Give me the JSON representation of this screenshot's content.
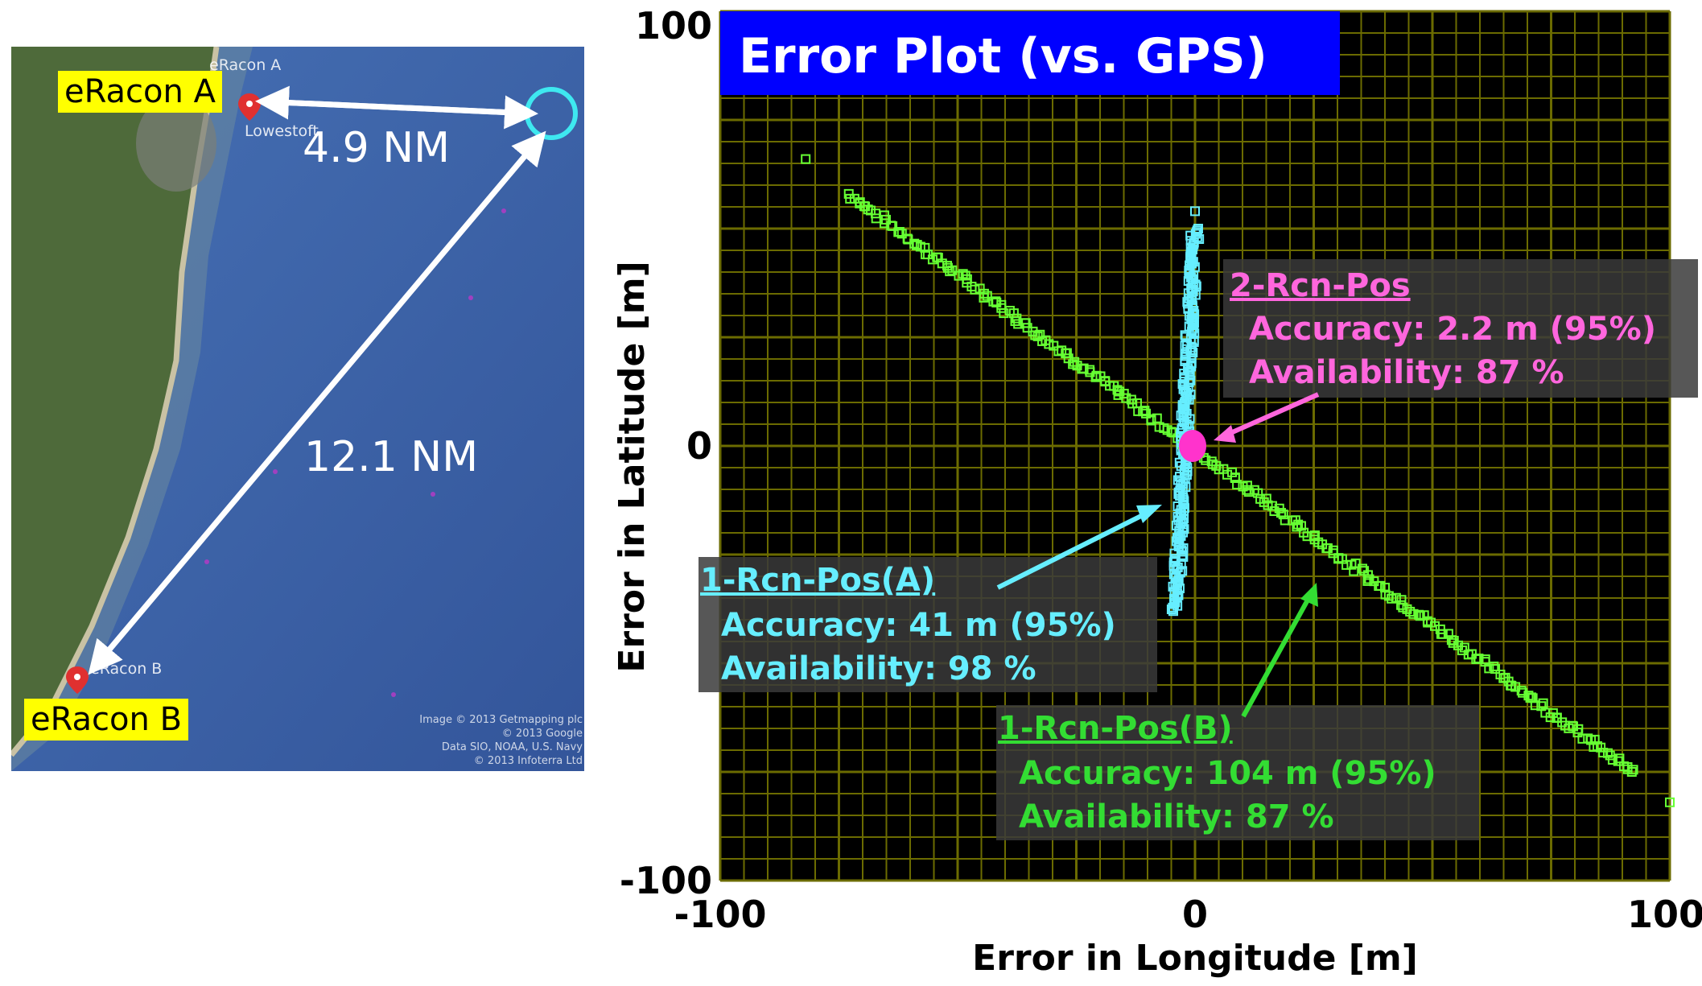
{
  "map": {
    "markers": [
      {
        "name": "eRacon A",
        "town": "Lowestoft"
      },
      {
        "name": "eRacon B"
      }
    ],
    "distances": [
      "4.9 NM",
      "12.1 NM"
    ],
    "credits": [
      "Image © 2013 Getmapping plc",
      "© 2013 Google",
      "Data SIO, NOAA, U.S. Navy",
      "© 2013 Infoterra Ltd"
    ],
    "colors": {
      "sea": "#3a5fa8",
      "land": "#4e6a3a",
      "highlight": "#3ee8f0",
      "arrow": "#ffffff",
      "label_bg": "#ffff00"
    }
  },
  "chart_data": {
    "type": "scatter",
    "title": "Error Plot (vs. GPS)",
    "xlabel": "Error in Longitude [m]",
    "ylabel": "Error in Latitude [m]",
    "xlim": [
      -100,
      100
    ],
    "ylim": [
      -100,
      100
    ],
    "x_ticks": [
      "-100",
      "0",
      "100"
    ],
    "y_ticks": [
      "100",
      "0",
      "-100"
    ],
    "grid": true,
    "colors": {
      "background": "#000000",
      "grid": "#6b6b00",
      "title_bg": "#0000ff"
    },
    "series": [
      {
        "name": "1-Rcn-Pos(B)",
        "color": "#66ff33",
        "marker": "square",
        "trend": {
          "x": [
            -73,
            92
          ],
          "y": [
            58,
            -75
          ]
        },
        "outliers": [
          [
            -82,
            66
          ],
          [
            92,
            -75
          ],
          [
            100,
            -82
          ]
        ],
        "annotation": {
          "title": "1-Rcn-Pos(B)",
          "lines": [
            "Accuracy:  104 m (95%)",
            "Availability:  87 %"
          ]
        }
      },
      {
        "name": "1-Rcn-Pos(A)",
        "color": "#66eeff",
        "marker": "square",
        "trend": {
          "x": [
            0,
            -4
          ],
          "y": [
            50,
            -38
          ]
        },
        "outliers": [
          [
            0,
            54
          ]
        ],
        "annotation": {
          "title": "1-Rcn-Pos(A)",
          "lines": [
            "Accuracy:  41 m (95%)",
            "Availability:  98 %"
          ]
        }
      },
      {
        "name": "2-Rcn-Pos",
        "color": "#ff33cc",
        "marker": "filled",
        "center": [
          -0.5,
          0
        ],
        "annotation": {
          "title": "2-Rcn-Pos",
          "lines": [
            "Accuracy:  2.2 m (95%)",
            "Availability:  87 %"
          ]
        }
      }
    ]
  }
}
